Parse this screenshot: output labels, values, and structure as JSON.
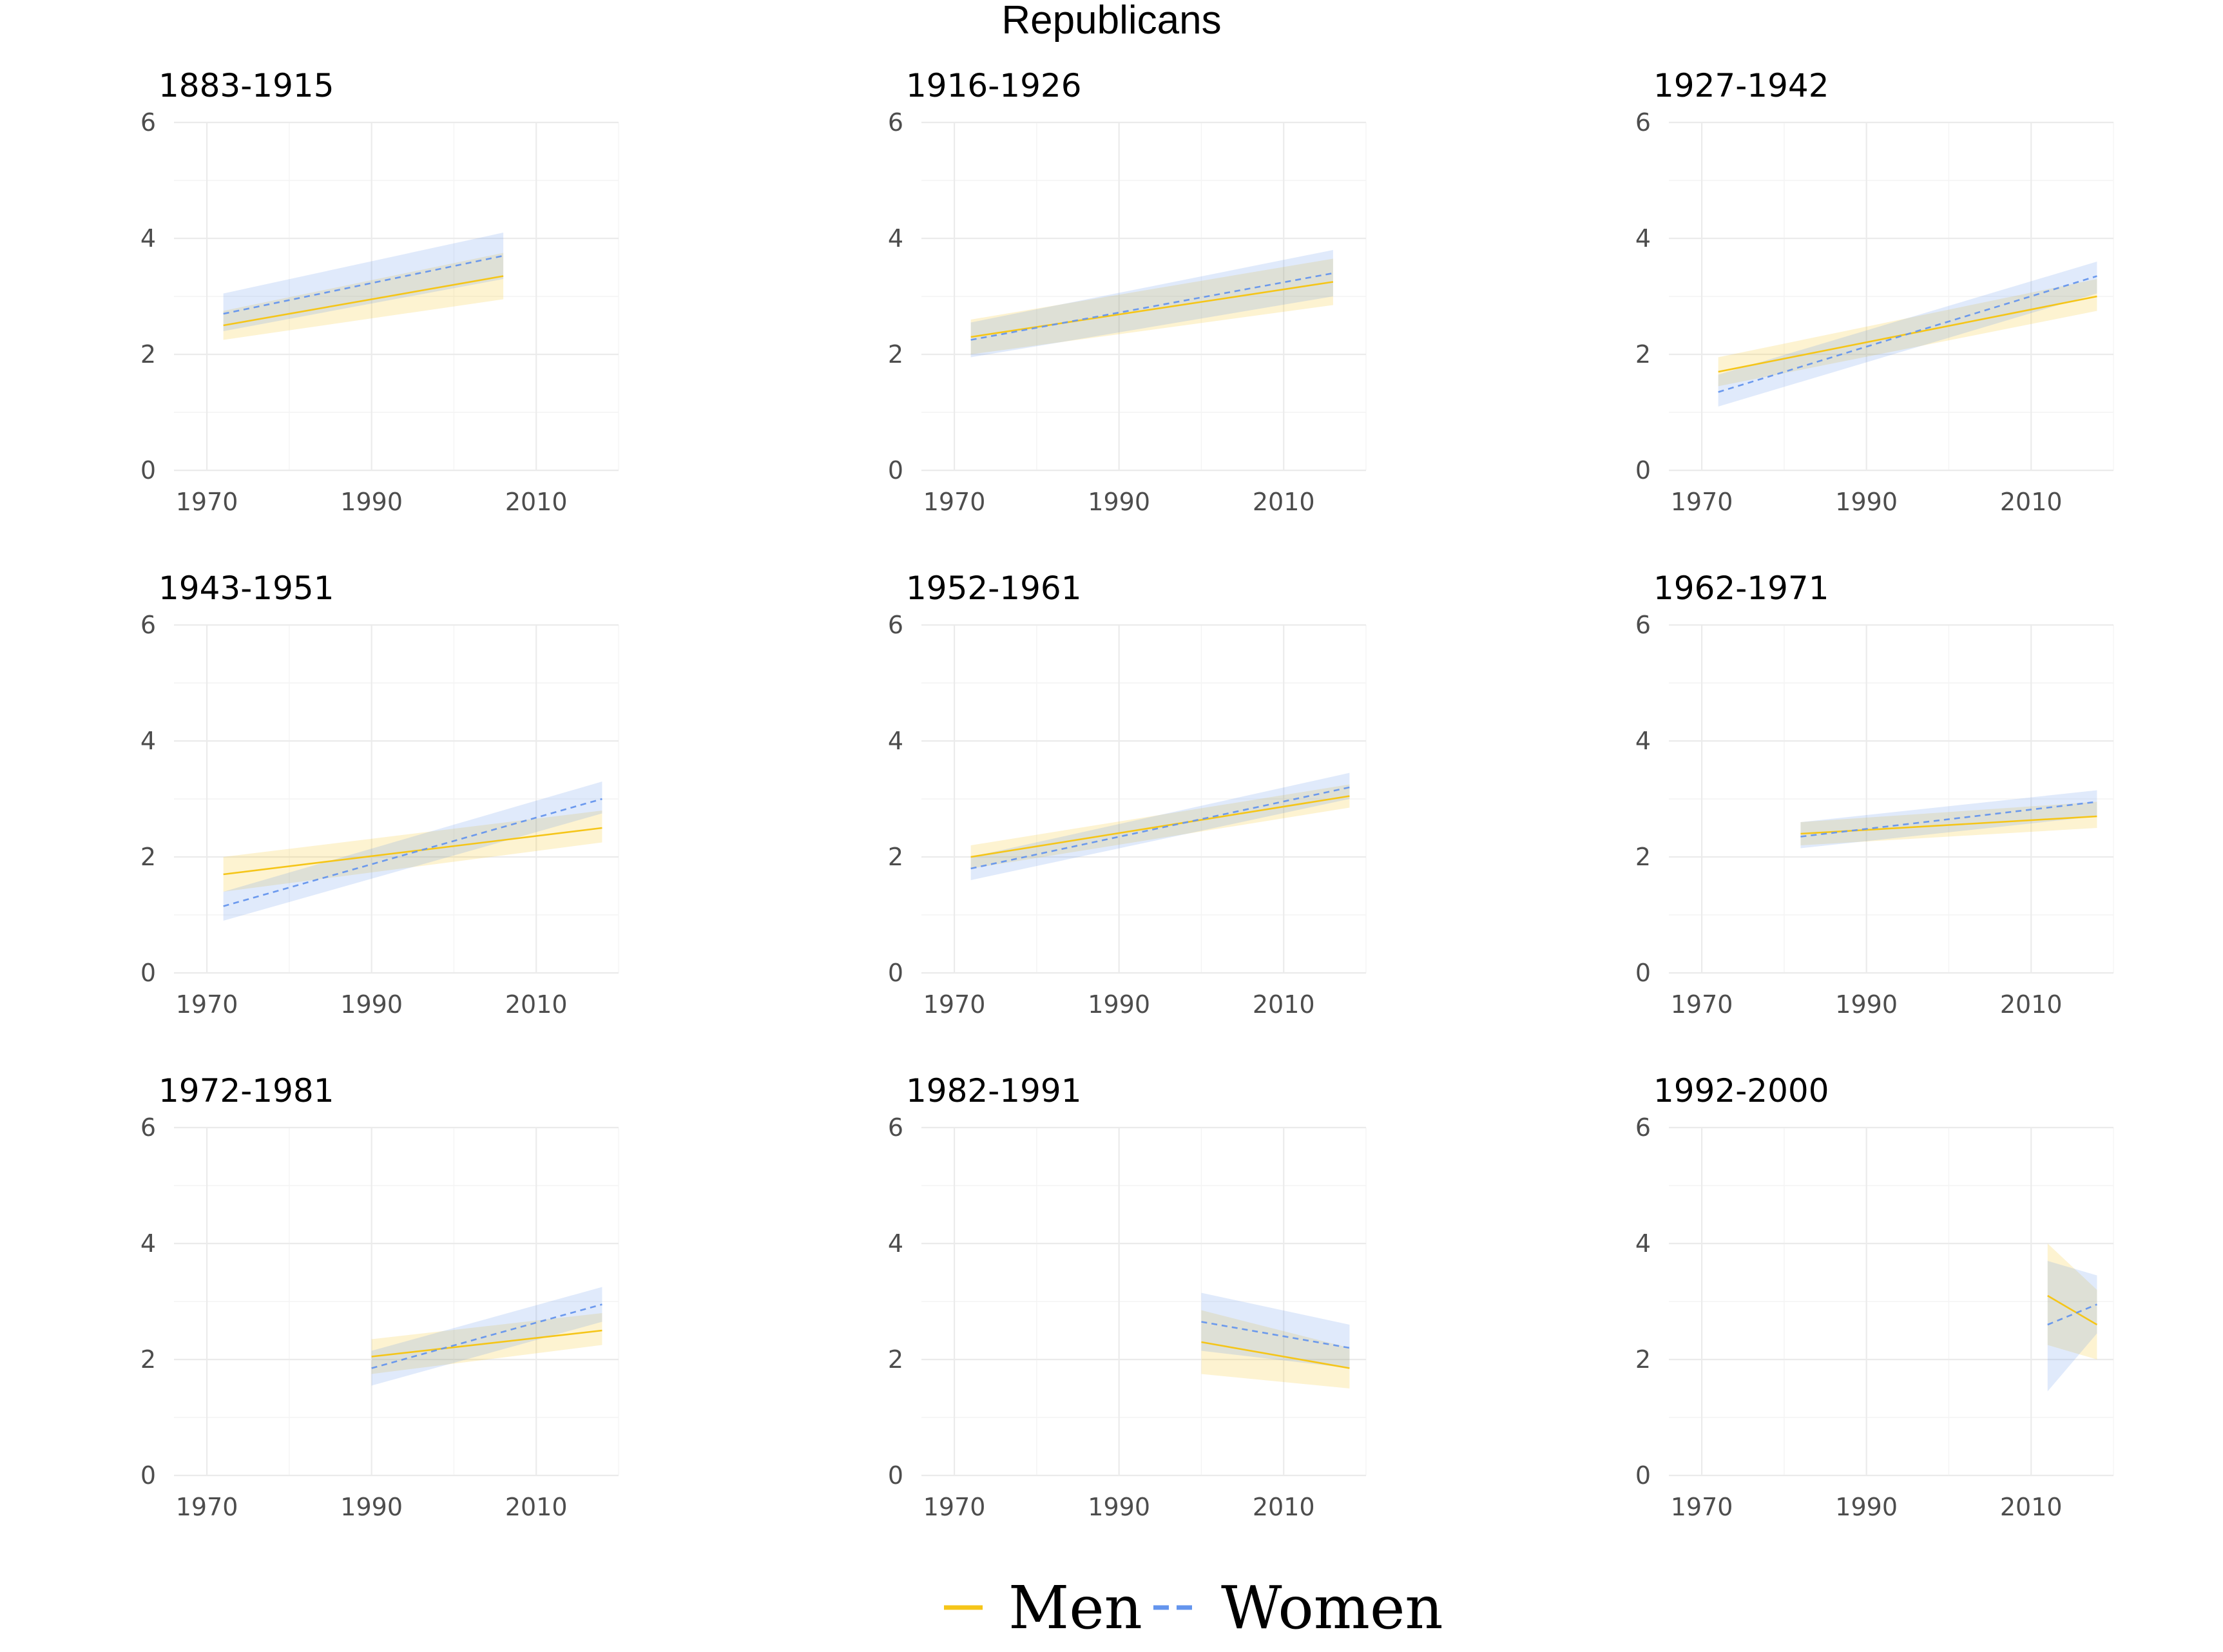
{
  "figure": {
    "title": "Republicans",
    "legend": {
      "placement": "bottom",
      "items": [
        {
          "label": "Men",
          "color": "#F5C518",
          "line": "solid"
        },
        {
          "label": "Women",
          "color": "#6495ED",
          "line": "dashed"
        }
      ]
    }
  },
  "chart_data": [
    {
      "type": "line",
      "title": "1883-1915",
      "xlim": [
        1966,
        2020
      ],
      "ylim": [
        0,
        6
      ],
      "x_ticks": [
        "1970",
        "1990",
        "2010"
      ],
      "y_ticks": [
        "0",
        "2",
        "4",
        "6"
      ],
      "series": [
        {
          "name": "Men",
          "color": "#F5C518",
          "x": [
            1972,
            2006
          ],
          "y": [
            2.5,
            3.35
          ],
          "lower": [
            2.25,
            2.95
          ],
          "upper": [
            2.75,
            3.75
          ]
        },
        {
          "name": "Women",
          "color": "#6495ED",
          "x": [
            1972,
            2006
          ],
          "y": [
            2.7,
            3.7
          ],
          "lower": [
            2.4,
            3.3
          ],
          "upper": [
            3.05,
            4.1
          ]
        }
      ]
    },
    {
      "type": "line",
      "title": "1916-1926",
      "xlim": [
        1966,
        2020
      ],
      "ylim": [
        0,
        6
      ],
      "x_ticks": [
        "1970",
        "1990",
        "2010"
      ],
      "y_ticks": [
        "0",
        "2",
        "4",
        "6"
      ],
      "series": [
        {
          "name": "Men",
          "color": "#F5C518",
          "x": [
            1972,
            2016
          ],
          "y": [
            2.3,
            3.25
          ],
          "lower": [
            2.0,
            2.85
          ],
          "upper": [
            2.6,
            3.65
          ]
        },
        {
          "name": "Women",
          "color": "#6495ED",
          "x": [
            1972,
            2016
          ],
          "y": [
            2.25,
            3.4
          ],
          "lower": [
            1.95,
            3.0
          ],
          "upper": [
            2.55,
            3.8
          ]
        }
      ]
    },
    {
      "type": "line",
      "title": "1927-1942",
      "xlim": [
        1966,
        2020
      ],
      "ylim": [
        0,
        6
      ],
      "x_ticks": [
        "1970",
        "1990",
        "2010"
      ],
      "y_ticks": [
        "0",
        "2",
        "4",
        "6"
      ],
      "series": [
        {
          "name": "Men",
          "color": "#F5C518",
          "x": [
            1972,
            2018
          ],
          "y": [
            1.7,
            3.0
          ],
          "lower": [
            1.45,
            2.75
          ],
          "upper": [
            1.95,
            3.3
          ]
        },
        {
          "name": "Women",
          "color": "#6495ED",
          "x": [
            1972,
            2018
          ],
          "y": [
            1.35,
            3.35
          ],
          "lower": [
            1.1,
            3.05
          ],
          "upper": [
            1.65,
            3.6
          ]
        }
      ]
    },
    {
      "type": "line",
      "title": "1943-1951",
      "xlim": [
        1966,
        2020
      ],
      "ylim": [
        0,
        6
      ],
      "x_ticks": [
        "1970",
        "1990",
        "2010"
      ],
      "y_ticks": [
        "0",
        "2",
        "4",
        "6"
      ],
      "series": [
        {
          "name": "Men",
          "color": "#F5C518",
          "x": [
            1972,
            2018
          ],
          "y": [
            1.7,
            2.5
          ],
          "lower": [
            1.4,
            2.25
          ],
          "upper": [
            2.0,
            2.8
          ]
        },
        {
          "name": "Women",
          "color": "#6495ED",
          "x": [
            1972,
            2018
          ],
          "y": [
            1.15,
            3.0
          ],
          "lower": [
            0.9,
            2.75
          ],
          "upper": [
            1.4,
            3.3
          ]
        }
      ]
    },
    {
      "type": "line",
      "title": "1952-1961",
      "xlim": [
        1966,
        2020
      ],
      "ylim": [
        0,
        6
      ],
      "x_ticks": [
        "1970",
        "1990",
        "2010"
      ],
      "y_ticks": [
        "0",
        "2",
        "4",
        "6"
      ],
      "series": [
        {
          "name": "Men",
          "color": "#F5C518",
          "x": [
            1972,
            2018
          ],
          "y": [
            2.0,
            3.05
          ],
          "lower": [
            1.8,
            2.85
          ],
          "upper": [
            2.2,
            3.25
          ]
        },
        {
          "name": "Women",
          "color": "#6495ED",
          "x": [
            1972,
            2018
          ],
          "y": [
            1.8,
            3.2
          ],
          "lower": [
            1.6,
            3.0
          ],
          "upper": [
            2.0,
            3.45
          ]
        }
      ]
    },
    {
      "type": "line",
      "title": "1962-1971",
      "xlim": [
        1966,
        2020
      ],
      "ylim": [
        0,
        6
      ],
      "x_ticks": [
        "1970",
        "1990",
        "2010"
      ],
      "y_ticks": [
        "0",
        "2",
        "4",
        "6"
      ],
      "series": [
        {
          "name": "Men",
          "color": "#F5C518",
          "x": [
            1982,
            2018
          ],
          "y": [
            2.4,
            2.7
          ],
          "lower": [
            2.2,
            2.5
          ],
          "upper": [
            2.6,
            2.95
          ]
        },
        {
          "name": "Women",
          "color": "#6495ED",
          "x": [
            1982,
            2018
          ],
          "y": [
            2.35,
            2.95
          ],
          "lower": [
            2.15,
            2.7
          ],
          "upper": [
            2.6,
            3.15
          ]
        }
      ]
    },
    {
      "type": "line",
      "title": "1972-1981",
      "xlim": [
        1966,
        2020
      ],
      "ylim": [
        0,
        6
      ],
      "x_ticks": [
        "1970",
        "1990",
        "2010"
      ],
      "y_ticks": [
        "0",
        "2",
        "4",
        "6"
      ],
      "series": [
        {
          "name": "Men",
          "color": "#F5C518",
          "x": [
            1990,
            2018
          ],
          "y": [
            2.05,
            2.5
          ],
          "lower": [
            1.75,
            2.25
          ],
          "upper": [
            2.35,
            2.8
          ]
        },
        {
          "name": "Women",
          "color": "#6495ED",
          "x": [
            1990,
            2018
          ],
          "y": [
            1.85,
            2.95
          ],
          "lower": [
            1.55,
            2.65
          ],
          "upper": [
            2.15,
            3.25
          ]
        }
      ]
    },
    {
      "type": "line",
      "title": "1982-1991",
      "xlim": [
        1966,
        2020
      ],
      "ylim": [
        0,
        6
      ],
      "x_ticks": [
        "1970",
        "1990",
        "2010"
      ],
      "y_ticks": [
        "0",
        "2",
        "4",
        "6"
      ],
      "series": [
        {
          "name": "Men",
          "color": "#F5C518",
          "x": [
            2000,
            2018
          ],
          "y": [
            2.3,
            1.85
          ],
          "lower": [
            1.75,
            1.5
          ],
          "upper": [
            2.85,
            2.2
          ]
        },
        {
          "name": "Women",
          "color": "#6495ED",
          "x": [
            2000,
            2018
          ],
          "y": [
            2.65,
            2.2
          ],
          "lower": [
            2.15,
            1.85
          ],
          "upper": [
            3.15,
            2.6
          ]
        }
      ]
    },
    {
      "type": "line",
      "title": "1992-2000",
      "xlim": [
        1966,
        2020
      ],
      "ylim": [
        0,
        6
      ],
      "x_ticks": [
        "1970",
        "1990",
        "2010"
      ],
      "y_ticks": [
        "0",
        "2",
        "4",
        "6"
      ],
      "series": [
        {
          "name": "Men",
          "color": "#F5C518",
          "x": [
            2012,
            2018
          ],
          "y": [
            3.1,
            2.6
          ],
          "lower": [
            2.25,
            2.0
          ],
          "upper": [
            4.0,
            3.2
          ]
        },
        {
          "name": "Women",
          "color": "#6495ED",
          "x": [
            2012,
            2018
          ],
          "y": [
            2.6,
            2.95
          ],
          "lower": [
            1.45,
            2.45
          ],
          "upper": [
            3.7,
            3.45
          ]
        }
      ]
    }
  ]
}
